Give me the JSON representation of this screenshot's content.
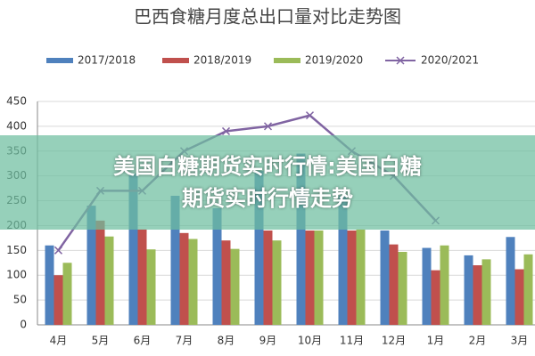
{
  "chart_data": {
    "type": "bar_line",
    "title": "巴西食糖月度总出口量对比走势图",
    "categories": [
      "4月",
      "5月",
      "6月",
      "7月",
      "8月",
      "9月",
      "10月",
      "11月",
      "12月",
      "1月",
      "2月",
      "3月"
    ],
    "series": [
      {
        "name": "2017/2018",
        "color": "#4f81bd",
        "kind": "bar",
        "values": [
          160,
          240,
          305,
          260,
          235,
          310,
          345,
          260,
          190,
          155,
          140,
          177
        ]
      },
      {
        "name": "2018/2019",
        "color": "#c0504d",
        "kind": "bar",
        "values": [
          100,
          210,
          192,
          185,
          170,
          190,
          190,
          190,
          162,
          110,
          120,
          112
        ]
      },
      {
        "name": "2019/2020",
        "color": "#9bbb59",
        "kind": "bar",
        "values": [
          125,
          178,
          152,
          173,
          153,
          170,
          190,
          192,
          147,
          160,
          132,
          142
        ]
      },
      {
        "name": "2020/2021",
        "color": "#8064a2",
        "kind": "line",
        "values": [
          150,
          270,
          270,
          350,
          390,
          400,
          422,
          350,
          300,
          210,
          null,
          null
        ]
      }
    ],
    "ylim": [
      0,
      450
    ],
    "yticks": [
      0,
      50,
      100,
      150,
      200,
      250,
      300,
      350,
      400,
      450
    ],
    "grid": true
  },
  "banner": {
    "lines": [
      "美国白糖期货实时行情:美国白糖",
      "期货实时行情走势"
    ]
  }
}
